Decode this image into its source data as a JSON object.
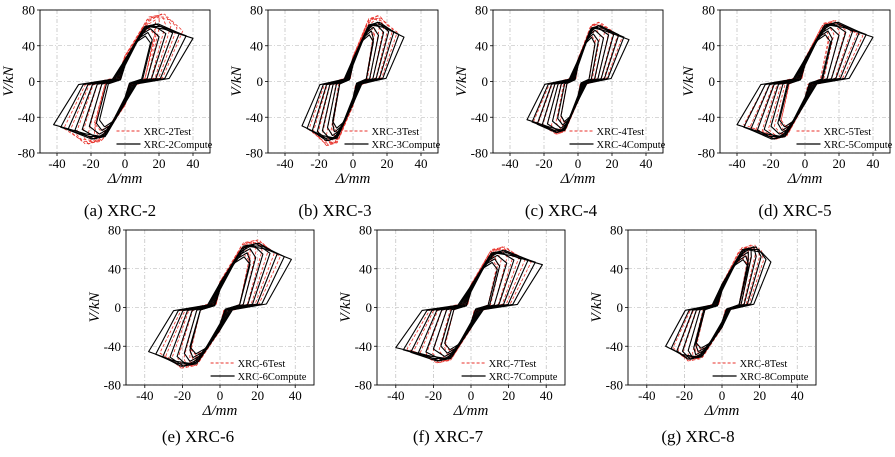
{
  "figure": {
    "colors": {
      "test": "#e8322b",
      "compute": "#000000",
      "grid": "#b0b0b0"
    },
    "icons": {
      "test_line": "red-dashed-line-icon",
      "compute_line": "black-solid-line-icon"
    }
  },
  "chart_data": [
    {
      "id": "XRC-2",
      "caption": "(a) XRC-2",
      "type": "line",
      "ylabel": "V/kN",
      "xlabel": "Δ/mm",
      "xlim": [
        -50,
        50
      ],
      "ylim": [
        -80,
        80
      ],
      "xticks": [
        "-40",
        "-20",
        "0",
        "20",
        "40"
      ],
      "yticks": [
        "80",
        "40",
        "0",
        "-40",
        "-80"
      ],
      "legend": {
        "placement": "bottom-right",
        "entries": [
          "XRC-2Test",
          "XRC-2Compute"
        ]
      },
      "series": [
        {
          "name": "XRC-2Test",
          "style": "dashed",
          "peak_pos": [
            18,
            82
          ],
          "peak_neg": [
            -18,
            -76
          ],
          "dmax": 34,
          "dmin": -36,
          "pinch": 0.5
        },
        {
          "name": "XRC-2Compute",
          "style": "solid",
          "peak_pos": [
            15,
            70
          ],
          "peak_neg": [
            -15,
            -70
          ],
          "dmax": 40,
          "dmin": -42,
          "pinch": 0.3
        }
      ]
    },
    {
      "id": "XRC-3",
      "caption": "(b) XRC-3",
      "type": "line",
      "ylabel": "V/kN",
      "xlabel": "Δ/mm",
      "xlim": [
        -50,
        50
      ],
      "ylim": [
        -80,
        80
      ],
      "xticks": [
        "-40",
        "-20",
        "0",
        "20",
        "40"
      ],
      "yticks": [
        "80",
        "40",
        "0",
        "-40",
        "-80"
      ],
      "legend": {
        "placement": "bottom-right",
        "entries": [
          "XRC-3Test",
          "XRC-3Compute"
        ]
      },
      "series": [
        {
          "name": "XRC-3Test",
          "style": "dashed",
          "peak_pos": [
            12,
            80
          ],
          "peak_neg": [
            -12,
            -78
          ],
          "dmax": 26,
          "dmin": -26,
          "pinch": 0.5
        },
        {
          "name": "XRC-3Compute",
          "style": "solid",
          "peak_pos": [
            12,
            72
          ],
          "peak_neg": [
            -12,
            -72
          ],
          "dmax": 30,
          "dmin": -30,
          "pinch": 0.3
        }
      ]
    },
    {
      "id": "XRC-4",
      "caption": "(c) XRC-4",
      "type": "line",
      "ylabel": "V/kN",
      "xlabel": "Δ/mm",
      "xlim": [
        -50,
        50
      ],
      "ylim": [
        -80,
        80
      ],
      "xticks": [
        "-40",
        "-20",
        "0",
        "20",
        "40"
      ],
      "yticks": [
        "80",
        "40",
        "0",
        "-40",
        "-80"
      ],
      "legend": {
        "placement": "bottom-right",
        "entries": [
          "XRC-4Test",
          "XRC-4Compute"
        ]
      },
      "series": [
        {
          "name": "XRC-4Test",
          "style": "dashed",
          "peak_pos": [
            10,
            72
          ],
          "peak_neg": [
            -10,
            -64
          ],
          "dmax": 26,
          "dmin": -26,
          "pinch": 0.5
        },
        {
          "name": "XRC-4Compute",
          "style": "solid",
          "peak_pos": [
            10,
            68
          ],
          "peak_neg": [
            -10,
            -62
          ],
          "dmax": 30,
          "dmin": -30,
          "pinch": 0.3
        }
      ]
    },
    {
      "id": "XRC-5",
      "caption": "(d) XRC-5",
      "type": "line",
      "ylabel": "V/kN",
      "xlabel": "Δ/mm",
      "xlim": [
        -50,
        50
      ],
      "ylim": [
        -80,
        80
      ],
      "xticks": [
        "-40",
        "-20",
        "0",
        "20",
        "40"
      ],
      "yticks": [
        "80",
        "40",
        "0",
        "-40",
        "-80"
      ],
      "legend": {
        "placement": "bottom-right",
        "entries": [
          "XRC-5Test",
          "XRC-5Compute"
        ]
      },
      "series": [
        {
          "name": "XRC-5Test",
          "style": "dashed",
          "peak_pos": [
            14,
            74
          ],
          "peak_neg": [
            -14,
            -70
          ],
          "dmax": 34,
          "dmin": -36,
          "pinch": 0.5
        },
        {
          "name": "XRC-5Compute",
          "style": "solid",
          "peak_pos": [
            15,
            72
          ],
          "peak_neg": [
            -15,
            -70
          ],
          "dmax": 40,
          "dmin": -40,
          "pinch": 0.3
        }
      ]
    },
    {
      "id": "XRC-6",
      "caption": "(e) XRC-6",
      "type": "line",
      "ylabel": "V/kN",
      "xlabel": "Δ/mm",
      "xlim": [
        -50,
        50
      ],
      "ylim": [
        -80,
        80
      ],
      "xticks": [
        "-40",
        "-20",
        "0",
        "20",
        "40"
      ],
      "yticks": [
        "80",
        "40",
        "0",
        "-40",
        "-80"
      ],
      "legend": {
        "placement": "bottom-right",
        "entries": [
          "XRC-6Test",
          "XRC-6Compute"
        ]
      },
      "series": [
        {
          "name": "XRC-6Test",
          "style": "dashed",
          "peak_pos": [
            16,
            76
          ],
          "peak_neg": [
            -16,
            -68
          ],
          "dmax": 32,
          "dmin": -32,
          "pinch": 0.5
        },
        {
          "name": "XRC-6Compute",
          "style": "solid",
          "peak_pos": [
            16,
            72
          ],
          "peak_neg": [
            -16,
            -66
          ],
          "dmax": 38,
          "dmin": -38,
          "pinch": 0.3
        }
      ]
    },
    {
      "id": "XRC-7",
      "caption": "(f) XRC-7",
      "type": "line",
      "ylabel": "V/kN",
      "xlabel": "Δ/mm",
      "xlim": [
        -50,
        50
      ],
      "ylim": [
        -80,
        80
      ],
      "xticks": [
        "-40",
        "-20",
        "0",
        "20",
        "40"
      ],
      "yticks": [
        "80",
        "40",
        "0",
        "-40",
        "-80"
      ],
      "legend": {
        "placement": "bottom-right",
        "entries": [
          "XRC-7Test",
          "XRC-7Compute"
        ]
      },
      "series": [
        {
          "name": "XRC-7Test",
          "style": "dashed",
          "peak_pos": [
            14,
            68
          ],
          "peak_neg": [
            -14,
            -62
          ],
          "dmax": 32,
          "dmin": -34,
          "pinch": 0.5
        },
        {
          "name": "XRC-7Compute",
          "style": "solid",
          "peak_pos": [
            14,
            64
          ],
          "peak_neg": [
            -14,
            -60
          ],
          "dmax": 38,
          "dmin": -40,
          "pinch": 0.3
        }
      ]
    },
    {
      "id": "XRC-8",
      "caption": "(g) XRC-8",
      "type": "line",
      "ylabel": "V/kN",
      "xlabel": "Δ/mm",
      "xlim": [
        -50,
        50
      ],
      "ylim": [
        -80,
        80
      ],
      "xticks": [
        "-40",
        "-20",
        "0",
        "20",
        "40"
      ],
      "yticks": [
        "80",
        "40",
        "0",
        "-40",
        "-80"
      ],
      "legend": {
        "placement": "bottom-right",
        "entries": [
          "XRC-8Test",
          "XRC-8Compute"
        ]
      },
      "series": [
        {
          "name": "XRC-8Test",
          "style": "dashed",
          "peak_pos": [
            14,
            70
          ],
          "peak_neg": [
            -14,
            -60
          ],
          "dmax": 22,
          "dmin": -26,
          "pinch": 0.5
        },
        {
          "name": "XRC-8Compute",
          "style": "solid",
          "peak_pos": [
            14,
            68
          ],
          "peak_neg": [
            -14,
            -58
          ],
          "dmax": 26,
          "dmin": -30,
          "pinch": 0.3
        }
      ]
    }
  ]
}
